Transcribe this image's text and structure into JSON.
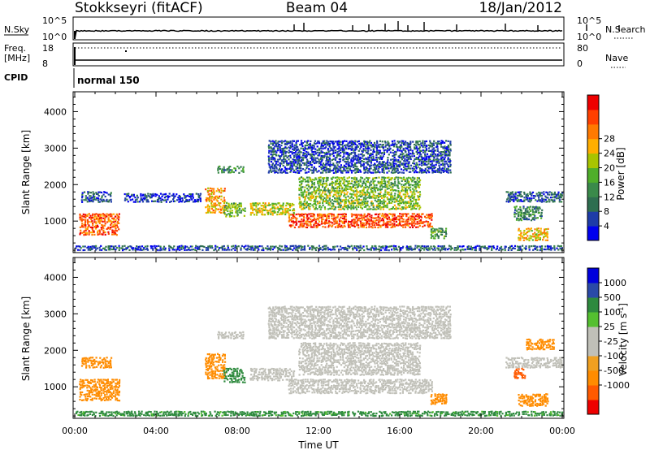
{
  "header": {
    "radar": "Stokkseyri (fitACF)",
    "beam": "Beam 04",
    "date": "18/Jan/2012"
  },
  "nsky_panel": {
    "left_label": "N.Sky",
    "left_top": "10^5",
    "left_bottom": "10^0",
    "right_label": "N.Search",
    "right_top": "10^5",
    "right_bottom": "10^0"
  },
  "freq_panel": {
    "left_label_1": "Freq.",
    "left_label_2": "[MHz]",
    "left_top": "18",
    "left_bottom": "8",
    "right_label": "Nave",
    "right_top": "80",
    "right_bottom": "0"
  },
  "cpid_panel": {
    "label": "CPID",
    "value": "normal 150"
  },
  "colors": {
    "power_scale": [
      "#0000ee",
      "#1e3ca8",
      "#2e6e50",
      "#3a8a4a",
      "#4fae2a",
      "#a8c400",
      "#ffae00",
      "#ff7a00",
      "#ff4000",
      "#ee0000"
    ],
    "velocity_scale": [
      "#ee0000",
      "#ff5a00",
      "#ff8c00",
      "#f0a020",
      "#c8c8c0",
      "#c8c8c0",
      "#54c030",
      "#2e8a3e",
      "#2a4aa8",
      "#0000dd"
    ],
    "ground_scatter": "#c0c0b8"
  },
  "chart_data": [
    {
      "type": "heatmap",
      "name": "power",
      "ylabel": "Slant Range [km]",
      "yticks": [
        1000,
        2000,
        3000,
        4000
      ],
      "ylim": [
        180,
        4500
      ],
      "xlim": [
        "00:00",
        "24:00"
      ],
      "colorbar_label": "Power [dB]",
      "colorbar_ticks": [
        4,
        8,
        12,
        16,
        20,
        24,
        28
      ],
      "clim": [
        0,
        32
      ],
      "regions": [
        {
          "t0": 0.2,
          "t1": 2.2,
          "r0": 600,
          "r1": 1200,
          "v": 26
        },
        {
          "t0": 0.3,
          "t1": 1.8,
          "r0": 1500,
          "r1": 1800,
          "v": 6
        },
        {
          "t0": 2.4,
          "t1": 6.2,
          "r0": 1500,
          "r1": 1750,
          "v": 4
        },
        {
          "t0": 6.4,
          "t1": 7.4,
          "r0": 1200,
          "r1": 1900,
          "v": 22
        },
        {
          "t0": 7.3,
          "t1": 8.4,
          "r0": 1100,
          "r1": 1500,
          "v": 14
        },
        {
          "t0": 7.0,
          "t1": 8.3,
          "r0": 2300,
          "r1": 2500,
          "v": 10
        },
        {
          "t0": 8.6,
          "t1": 10.8,
          "r0": 1150,
          "r1": 1500,
          "v": 18
        },
        {
          "t0": 10.5,
          "t1": 17.6,
          "r0": 800,
          "r1": 1200,
          "v": 27
        },
        {
          "t0": 11.0,
          "t1": 17.0,
          "r0": 1300,
          "r1": 1800,
          "v": 16
        },
        {
          "t0": 11.0,
          "t1": 17.0,
          "r0": 1800,
          "r1": 2200,
          "v": 14
        },
        {
          "t0": 9.5,
          "t1": 18.5,
          "r0": 2300,
          "r1": 3200,
          "v": 5
        },
        {
          "t0": 17.5,
          "t1": 18.3,
          "r0": 500,
          "r1": 800,
          "v": 12
        },
        {
          "t0": 21.2,
          "t1": 24.0,
          "r0": 1500,
          "r1": 1800,
          "v": 6
        },
        {
          "t0": 21.6,
          "t1": 23.0,
          "r0": 1000,
          "r1": 1400,
          "v": 10
        },
        {
          "t0": 21.8,
          "t1": 23.3,
          "r0": 450,
          "r1": 800,
          "v": 20
        },
        {
          "t0": 0.0,
          "t1": 24.0,
          "r0": 180,
          "r1": 320,
          "v": 6
        }
      ]
    },
    {
      "type": "heatmap",
      "name": "velocity",
      "ylabel": "Slant Range [km]",
      "yticks": [
        1000,
        2000,
        3000,
        4000
      ],
      "ylim": [
        180,
        4500
      ],
      "xlabel": "Time UT",
      "xticks": [
        "00:00",
        "04:00",
        "08:00",
        "12:00",
        "16:00",
        "20:00",
        "00:00"
      ],
      "xlim": [
        "00:00",
        "24:00"
      ],
      "colorbar_label": "Velocity [m s^-1]",
      "colorbar_ticks": [
        1000,
        500,
        100,
        25,
        -25,
        -100,
        -500,
        -1000
      ],
      "regions": [
        {
          "t0": 0.2,
          "t1": 2.2,
          "r0": 600,
          "r1": 1200,
          "v": -200
        },
        {
          "t0": 0.3,
          "t1": 1.8,
          "r0": 1500,
          "r1": 1800,
          "v": -250
        },
        {
          "t0": 6.4,
          "t1": 7.4,
          "r0": 1200,
          "r1": 1900,
          "v": -300
        },
        {
          "t0": 7.3,
          "t1": 8.4,
          "r0": 1100,
          "r1": 1500,
          "v": 200
        },
        {
          "t0": 7.0,
          "t1": 8.3,
          "r0": 2300,
          "r1": 2500,
          "v": 0
        },
        {
          "t0": 8.6,
          "t1": 10.8,
          "r0": 1150,
          "r1": 1500,
          "v": 0
        },
        {
          "t0": 10.5,
          "t1": 17.6,
          "r0": 800,
          "r1": 1200,
          "v": 0
        },
        {
          "t0": 11.0,
          "t1": 17.0,
          "r0": 1300,
          "r1": 2200,
          "v": 0
        },
        {
          "t0": 9.5,
          "t1": 18.5,
          "r0": 2300,
          "r1": 3200,
          "v": 0
        },
        {
          "t0": 17.5,
          "t1": 18.3,
          "r0": 500,
          "r1": 800,
          "v": -300
        },
        {
          "t0": 21.2,
          "t1": 24.0,
          "r0": 1500,
          "r1": 1800,
          "v": 0
        },
        {
          "t0": 21.6,
          "t1": 22.2,
          "r0": 1200,
          "r1": 1500,
          "v": -900
        },
        {
          "t0": 21.8,
          "t1": 23.3,
          "r0": 450,
          "r1": 800,
          "v": -300
        },
        {
          "t0": 22.2,
          "t1": 23.6,
          "r0": 2000,
          "r1": 2300,
          "v": -300
        },
        {
          "t0": 0.0,
          "t1": 24.0,
          "r0": 180,
          "r1": 320,
          "v": 150
        }
      ]
    }
  ]
}
